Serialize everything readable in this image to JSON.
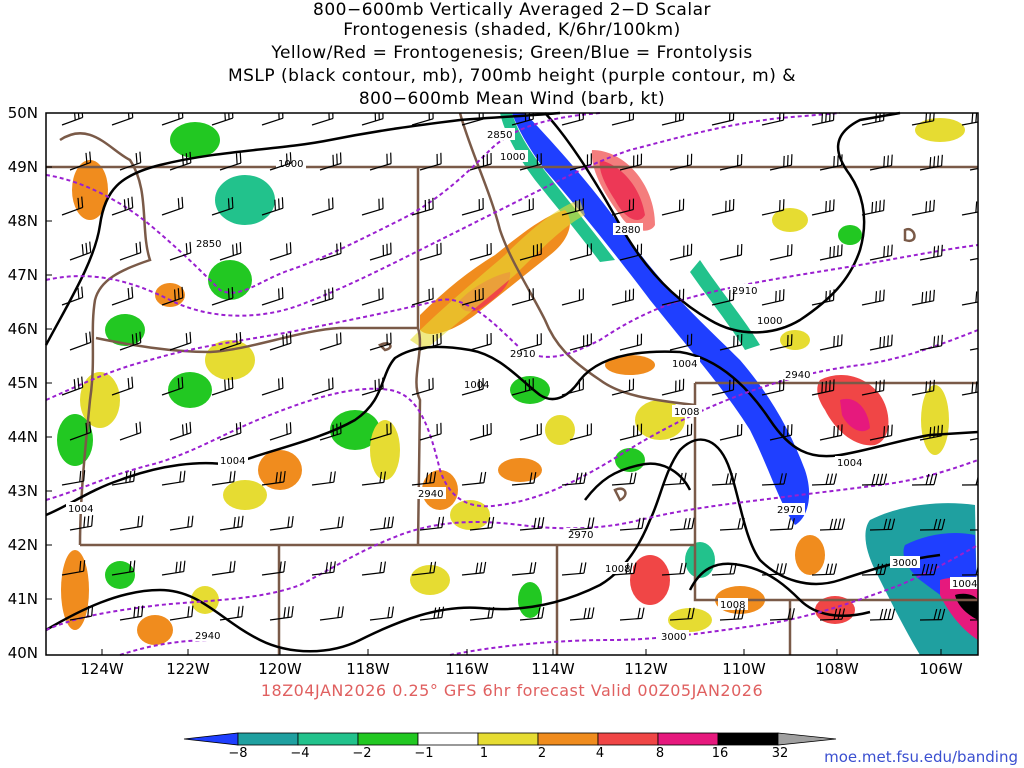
{
  "title_lines": [
    "800−600mb Vertically Averaged 2−D Scalar",
    "Frontogenesis (shaded, K/6hr/100km)",
    "Yellow/Red = Frontogenesis;  Green/Blue = Frontolysis",
    "MSLP (black contour, mb), 700mb height (purple contour, m) &",
    "800−600mb Mean Wind (barb, kt)"
  ],
  "lat_labels": [
    "50N",
    "49N",
    "48N",
    "47N",
    "46N",
    "45N",
    "44N",
    "43N",
    "42N",
    "41N",
    "40N"
  ],
  "lon_labels": [
    "124W",
    "122W",
    "120W",
    "118W",
    "116W",
    "114W",
    "112W",
    "110W",
    "108W",
    "106W"
  ],
  "footer": "18Z04JAN2026 0.25° GFS 6hr forecast Valid 00Z05JAN2026",
  "colorbar": {
    "labels": [
      "−8",
      "−4",
      "−2",
      "−1",
      "1",
      "2",
      "4",
      "8",
      "16",
      "32"
    ],
    "colors": [
      "#1f3fff",
      "#1fa0a0",
      "#22c28c",
      "#22c822",
      "#ffffff",
      "#e6dc32",
      "#f08c1e",
      "#f04646",
      "#e6197d",
      "#000000",
      "#a0a0a0"
    ]
  },
  "url": "moe.met.fsu.edu/banding",
  "contour_labels": {
    "mslp": [
      "1000",
      "1000",
      "1004",
      "1004",
      "1004",
      "1004",
      "1004",
      "1000",
      "1008",
      "1008",
      "1008",
      "1004"
    ],
    "height": [
      "2850",
      "2850",
      "2880",
      "2910",
      "2910",
      "2940",
      "2940",
      "2940",
      "2970",
      "2970",
      "3000",
      "3000"
    ]
  },
  "colors": {
    "mslp": "#000000",
    "height": "#9a1fd0",
    "borders": "#7a5a48",
    "footer": "#e06060",
    "url": "#3a4fd0"
  }
}
